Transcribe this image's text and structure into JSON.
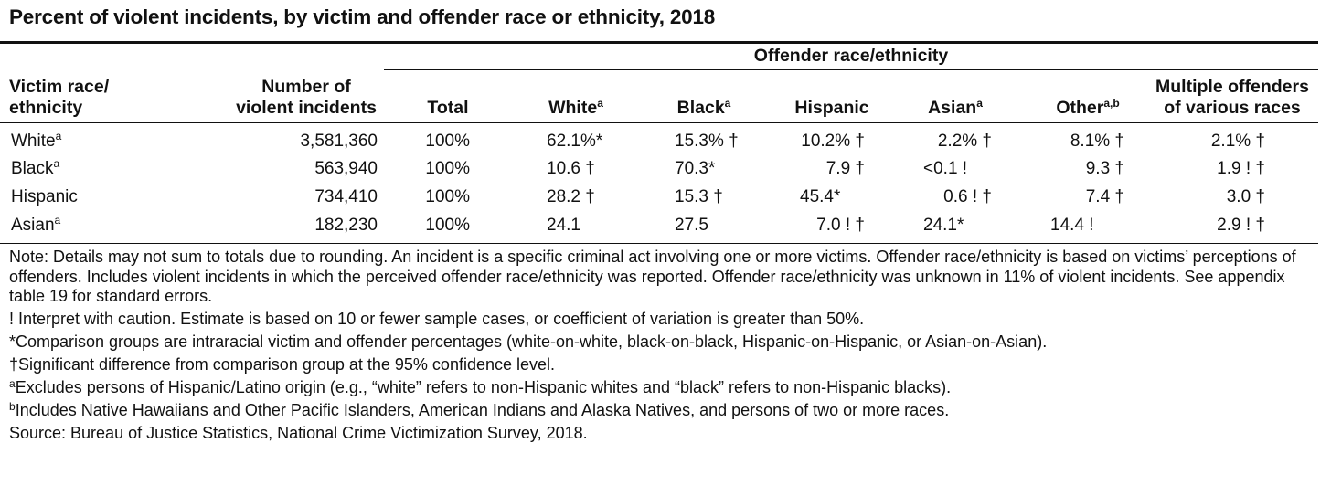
{
  "title": "Percent of violent incidents, by victim and offender race or ethnicity, 2018",
  "spanner": "Offender race/ethnicity",
  "headers": {
    "victim_line1": "Victim race/",
    "victim_line2": "ethnicity",
    "num_line1": "Number of",
    "num_line2": "violent incidents",
    "total": "Total",
    "white": "White",
    "white_sup": "a",
    "black": "Black",
    "black_sup": "a",
    "hispanic": "Hispanic",
    "asian": "Asian",
    "asian_sup": "a",
    "other": "Other",
    "other_sup": "a,b",
    "multi_line1": "Multiple offenders",
    "multi_line2": "of various races"
  },
  "rows": [
    {
      "label": "White",
      "sup": "a",
      "number": "3,581,360",
      "total": "100%",
      "white": "62.1%*",
      "black": "15.3% †",
      "hispanic": "10.2% †",
      "asian": "2.2% †",
      "other": "8.1% †",
      "multiple": "2.1% †"
    },
    {
      "label": "Black",
      "sup": "a",
      "number": "563,940",
      "total": "100%",
      "white": "10.6 †",
      "black": "70.3*",
      "hispanic": "7.9 †",
      "asian": "<0.1 !",
      "other": "9.3 †",
      "multiple": "1.9 ! †"
    },
    {
      "label": "Hispanic",
      "sup": "",
      "number": "734,410",
      "total": "100%",
      "white": "28.2 †",
      "black": "15.3 †",
      "hispanic": "45.4*",
      "asian": "0.6 ! †",
      "other": "7.4 †",
      "multiple": "3.0 †"
    },
    {
      "label": "Asian",
      "sup": "a",
      "number": "182,230",
      "total": "100%",
      "white": "24.1",
      "black": "27.5",
      "hispanic": "7.0 ! †",
      "asian": "24.1*",
      "other": "14.4 !",
      "multiple": "2.9 ! †"
    }
  ],
  "notes": {
    "note": "Note: Details may not sum to totals due to rounding. An incident is a specific criminal act involving one or more victims. Offender race/ethnicity is based on victims’ perceptions of offenders. Includes violent incidents in which the perceived offender race/ethnicity was reported. Offender race/ethnicity was unknown in 11% of violent incidents. See appendix table 19 for standard errors.",
    "caution": "! Interpret with caution. Estimate is based on 10 or fewer sample cases, or coefficient of variation is greater than 50%.",
    "comparison": "*Comparison groups are intraracial victim and offender percentages (white-on-white, black-on-black, Hispanic-on-Hispanic, or Asian-on-Asian).",
    "significant": "†Significant difference from comparison group at the 95% confidence level.",
    "a_mark": "a",
    "a_text": "Excludes persons of Hispanic/Latino origin (e.g., “white” refers to non-Hispanic whites and “black” refers to non-Hispanic blacks).",
    "b_mark": "b",
    "b_text": "Includes Native Hawaiians and Other Pacific Islanders, American Indians and Alaska Natives, and persons of two or more races.",
    "source": "Source: Bureau of Justice Statistics, National Crime Victimization Survey, 2018."
  }
}
